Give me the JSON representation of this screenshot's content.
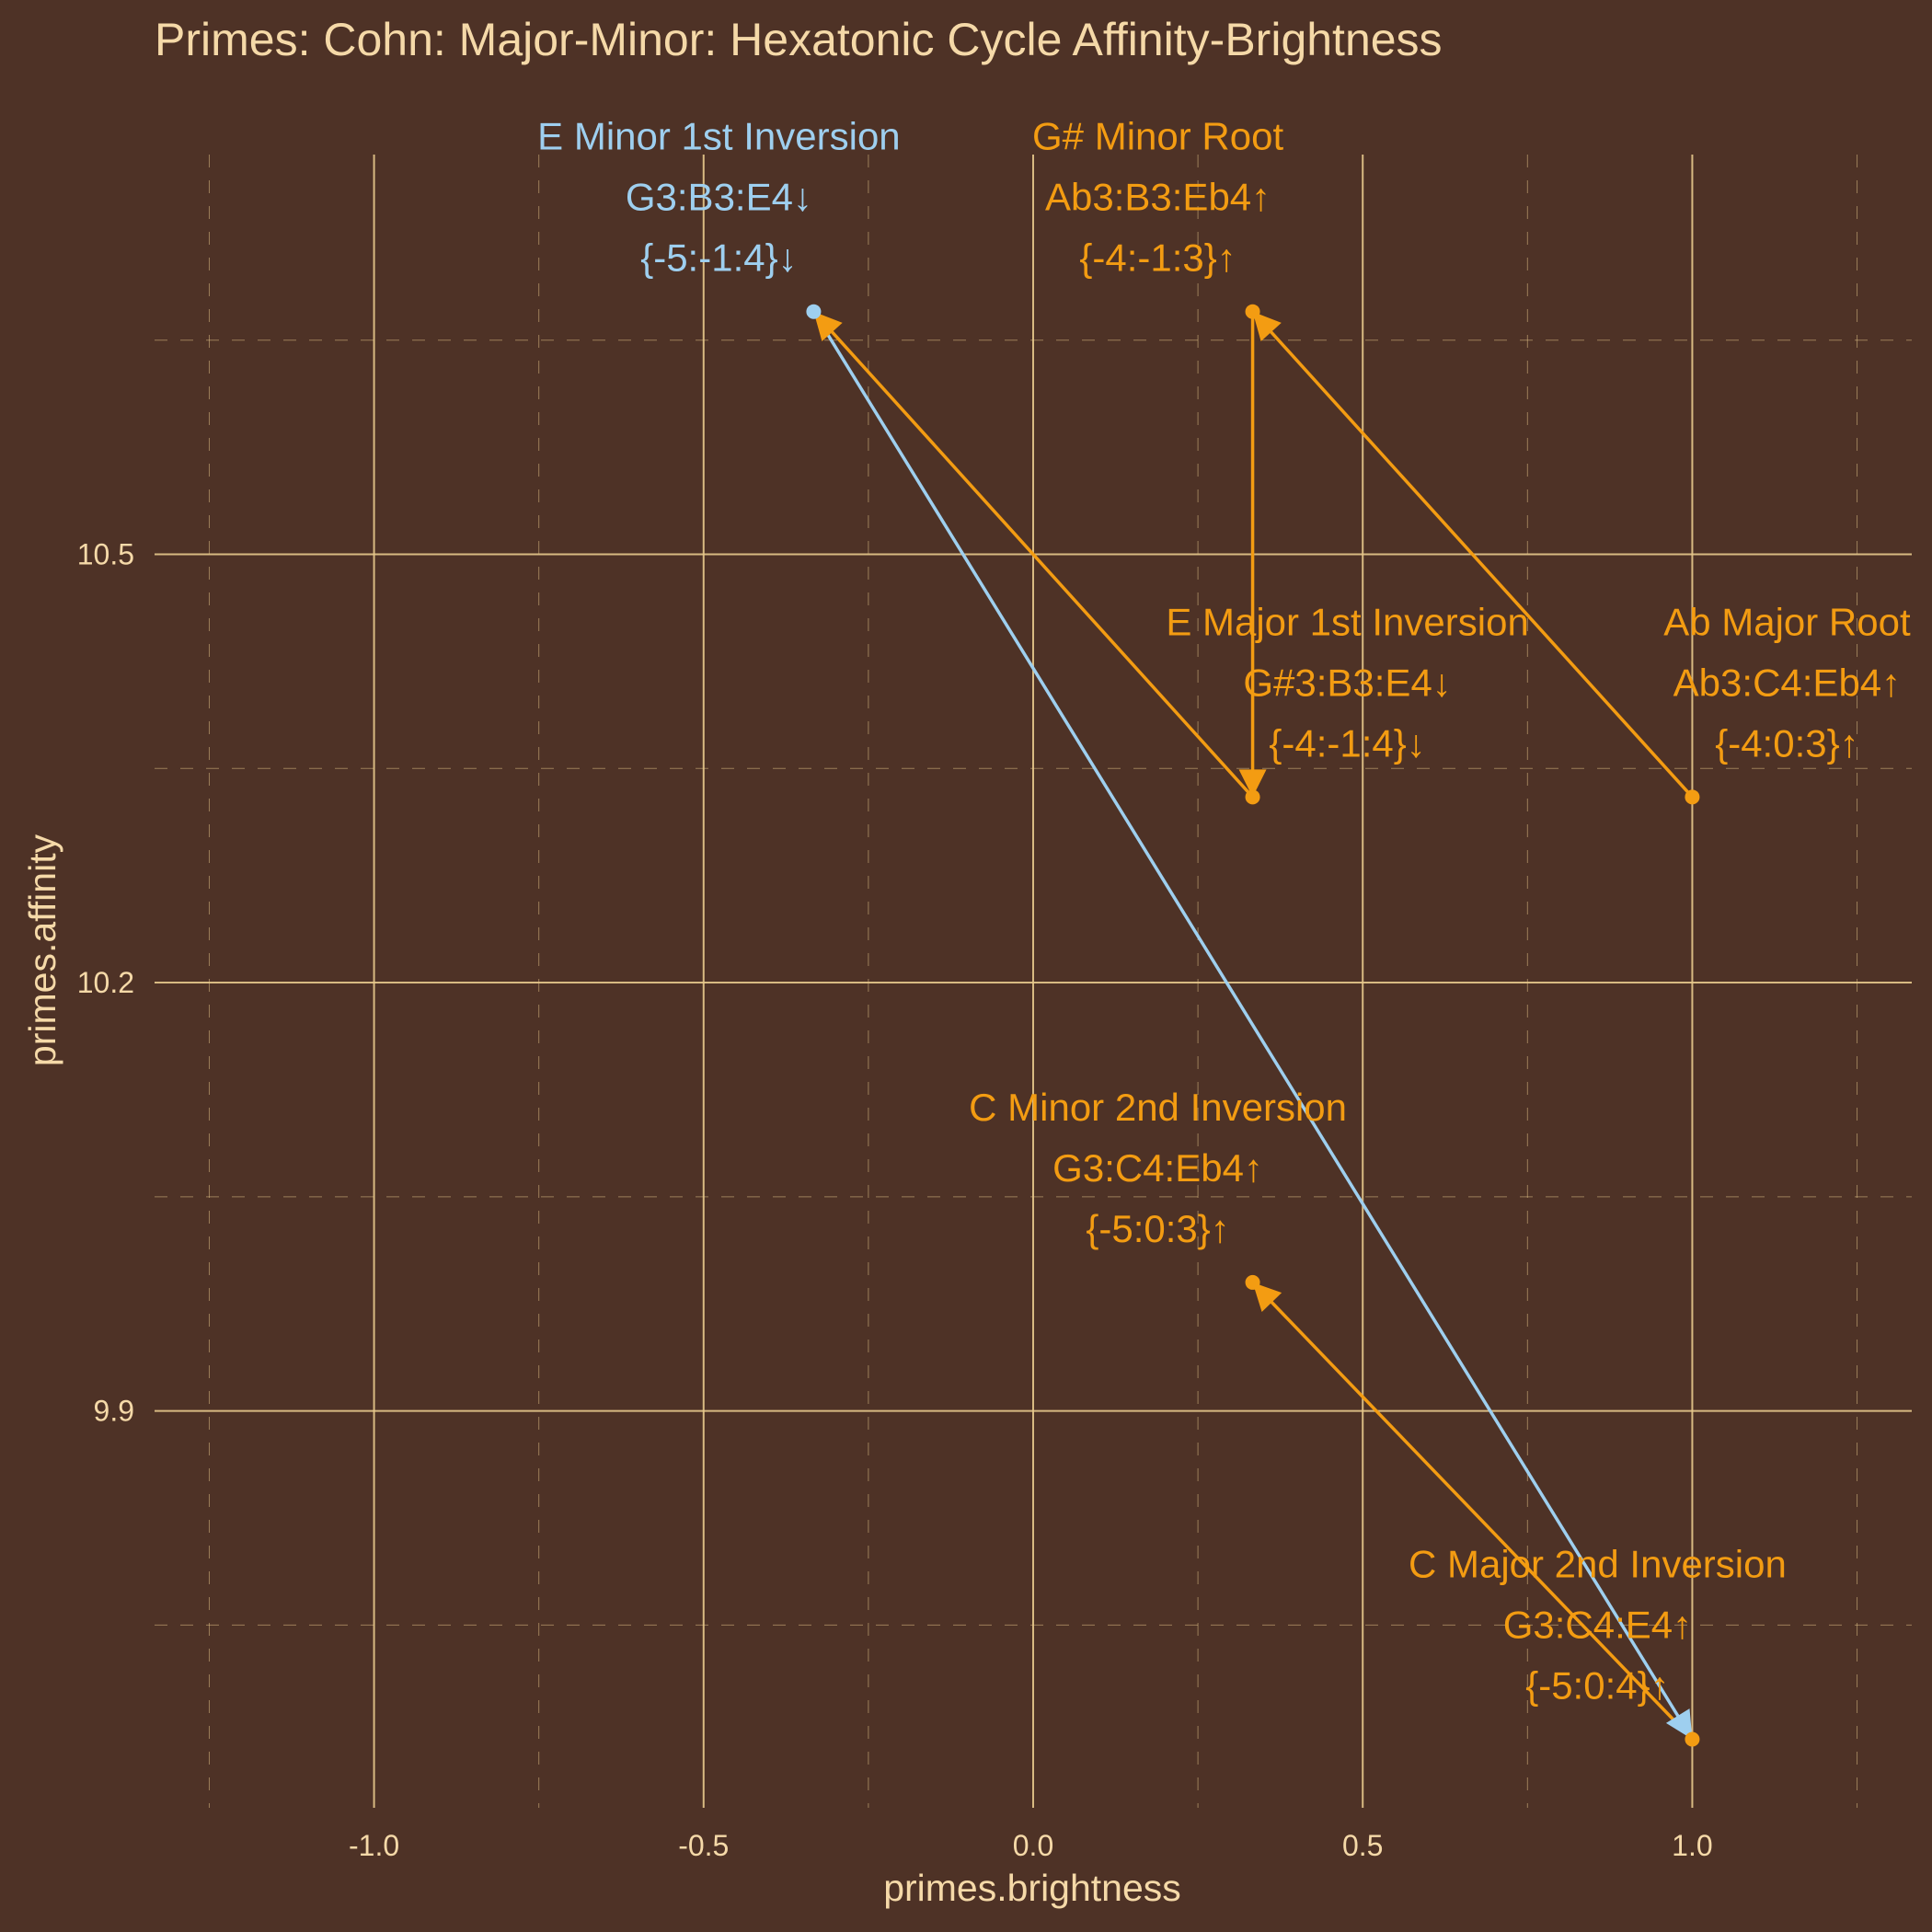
{
  "chart_data": {
    "type": "scatter",
    "title": "Primes: Cohn: Major-Minor: Hexatonic Cycle Affinity-Brightness",
    "xlabel": "primes.brightness",
    "ylabel": "primes.affinity",
    "xlim": [
      -1.333,
      1.333
    ],
    "ylim": [
      9.622,
      10.78
    ],
    "x_ticks": [
      {
        "value": -1.0,
        "label": "-1.0"
      },
      {
        "value": -0.5,
        "label": "-0.5"
      },
      {
        "value": 0.0,
        "label": "0.0"
      },
      {
        "value": 0.5,
        "label": "0.5"
      },
      {
        "value": 1.0,
        "label": "1.0"
      }
    ],
    "y_ticks": [
      {
        "value": 9.9,
        "label": "9.9"
      },
      {
        "value": 10.2,
        "label": "10.2"
      },
      {
        "value": 10.5,
        "label": "10.5"
      }
    ],
    "grid": true,
    "colors": {
      "background": "#4e3226",
      "text": "#f5d9a8",
      "grid": "#e8c98c",
      "minor": "#f39c12",
      "major": "#9ecfef"
    },
    "points": [
      {
        "name": "c-minor-2nd",
        "x": 0.333,
        "y": 9.99,
        "color": "#f39c12",
        "lines": [
          "C Minor 2nd Inversion",
          "G3:C4:Eb4↑",
          "{-5:0:3}↑"
        ]
      },
      {
        "name": "e-minor-1st",
        "x": -0.333,
        "y": 10.67,
        "color": "#9ecfef",
        "lines": [
          "E Minor 1st Inversion",
          "G3:B3:E4↓",
          "{-5:-1:4}↓"
        ]
      },
      {
        "name": "g-sharp-minor-root",
        "x": 0.333,
        "y": 10.67,
        "color": "#f39c12",
        "lines": [
          "G# Minor Root",
          "Ab3:B3:Eb4↑",
          "{-4:-1:3}↑"
        ]
      },
      {
        "name": "e-major-1st",
        "x": 0.333,
        "y": 10.33,
        "color": "#f39c12",
        "lines": [
          "E Major 1st Inversion",
          "G#3:B3:E4↓",
          "{-4:-1:4}↓"
        ]
      },
      {
        "name": "ab-major-root",
        "x": 1.0,
        "y": 10.33,
        "color": "#f39c12",
        "lines": [
          "Ab Major Root",
          "Ab3:C4:Eb4↑",
          "{-4:0:3}↑"
        ]
      },
      {
        "name": "c-major-2nd",
        "x": 1.0,
        "y": 9.67,
        "color": "#f39c12",
        "lines": [
          "C Major 2nd Inversion",
          "G3:C4:E4↑",
          "{-5:0:4}↑"
        ]
      }
    ],
    "arrows": [
      {
        "name": "c-major-to-c-minor",
        "from": [
          1.0,
          9.67
        ],
        "to": [
          0.333,
          9.99
        ],
        "color": "#f39c12"
      },
      {
        "name": "e-minor-to-c-major",
        "from": [
          -0.333,
          10.67
        ],
        "to": [
          1.0,
          9.67
        ],
        "color": "#9ecfef"
      },
      {
        "name": "e-major-to-e-minor",
        "from": [
          0.333,
          10.33
        ],
        "to": [
          -0.333,
          10.67
        ],
        "color": "#f39c12"
      },
      {
        "name": "g-sharp-minor-to-e-major",
        "from": [
          0.333,
          10.67
        ],
        "to": [
          0.333,
          10.33
        ],
        "color": "#f39c12"
      },
      {
        "name": "ab-major-to-g-sharp-minor",
        "from": [
          1.0,
          10.33
        ],
        "to": [
          0.333,
          10.67
        ],
        "color": "#f39c12"
      }
    ]
  }
}
